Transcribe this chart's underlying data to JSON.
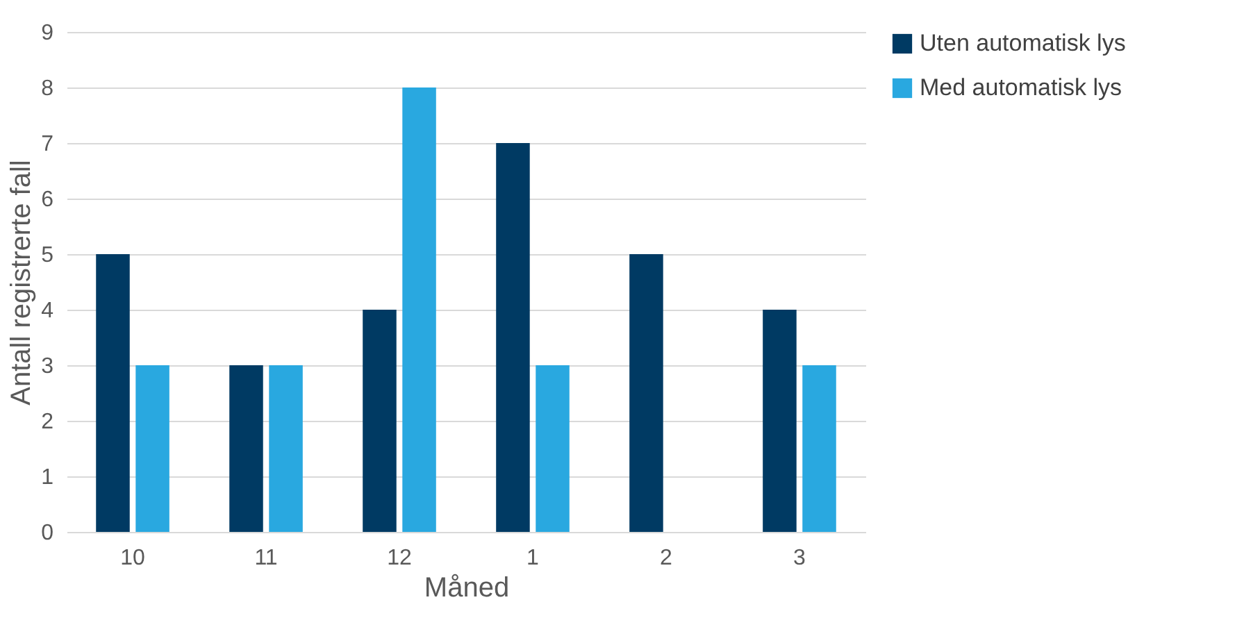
{
  "chart_data": {
    "type": "bar",
    "xlabel": "Måned",
    "ylabel": "Antall registrerte fall",
    "categories": [
      "10",
      "11",
      "12",
      "1",
      "2",
      "3"
    ],
    "series": [
      {
        "name": "Uten automatisk lys",
        "color": "#003a63",
        "values": [
          5,
          3,
          4,
          7,
          5,
          4
        ]
      },
      {
        "name": "Med automatisk lys",
        "color": "#29a8e0",
        "values": [
          3,
          3,
          8,
          3,
          0,
          3
        ]
      }
    ],
    "ylim": [
      0,
      9
    ],
    "yticks": [
      0,
      1,
      2,
      3,
      4,
      5,
      6,
      7,
      8,
      9
    ],
    "grid": "y",
    "legend": "right"
  }
}
